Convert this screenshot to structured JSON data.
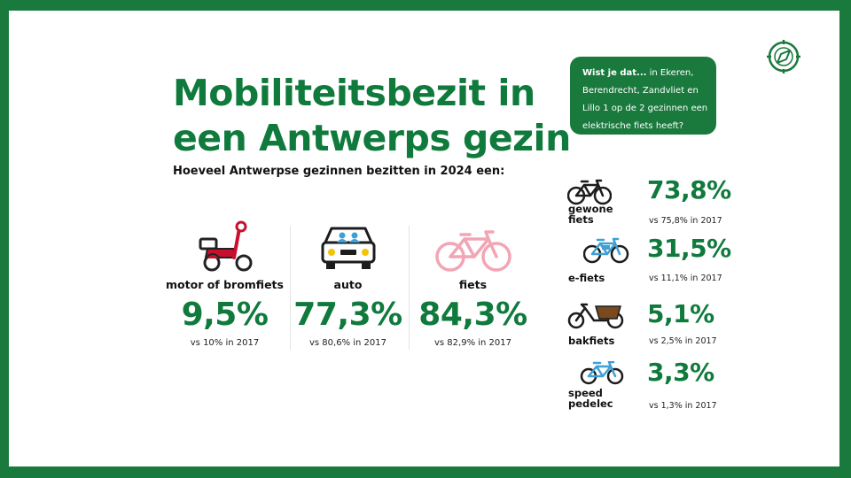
{
  "title_line1": "Mobiliteitsbezit in",
  "title_line2": "een Antwerps gezin",
  "subtitle": "Hoeveel Antwerpse gezinnen bezitten in 2024 een:",
  "main_items": [
    {
      "label": "motor of bromfiets",
      "value": "9,5%",
      "compare": "vs 10% in 2017",
      "icon": "scooter-icon",
      "color": "#c8102e"
    },
    {
      "label": "auto",
      "value": "77,3%",
      "compare": "vs 80,6% in 2017",
      "icon": "car-icon",
      "color": "#1c1c1c"
    },
    {
      "label": "fiets",
      "value": "84,3%",
      "compare": "vs 82,9% in 2017",
      "icon": "bicycle-icon",
      "color": "#f2a5b4"
    }
  ],
  "callout": {
    "lead": "Wist je dat...",
    "text": " in Ekeren, Berendrecht, Zandvliet en Lillo 1 op de 2 gezinnen een elektrische fiets heeft?"
  },
  "side_items": [
    {
      "label": "gewone fiets",
      "value": "73,8%",
      "compare": "vs 75,8% in 2017",
      "icon": "bicycle-icon"
    },
    {
      "label": "e-fiets",
      "value": "31,5%",
      "compare": "vs 11,1% in 2017",
      "icon": "e-bike-icon"
    },
    {
      "label": "bakfiets",
      "value": "5,1%",
      "compare": "vs 2,5% in 2017",
      "icon": "cargo-bike-icon"
    },
    {
      "label": "speed pedelec",
      "value": "3,3%",
      "compare": "vs 1,3% in 2017",
      "icon": "speed-pedelec-icon"
    }
  ],
  "colors": {
    "brand_green": "#1a7a3e",
    "value_green": "#0f7a3c",
    "bike_blue": "#3ea0d4",
    "cargo_brown": "#7a4a1e"
  },
  "decor_icon": "compass-icon"
}
